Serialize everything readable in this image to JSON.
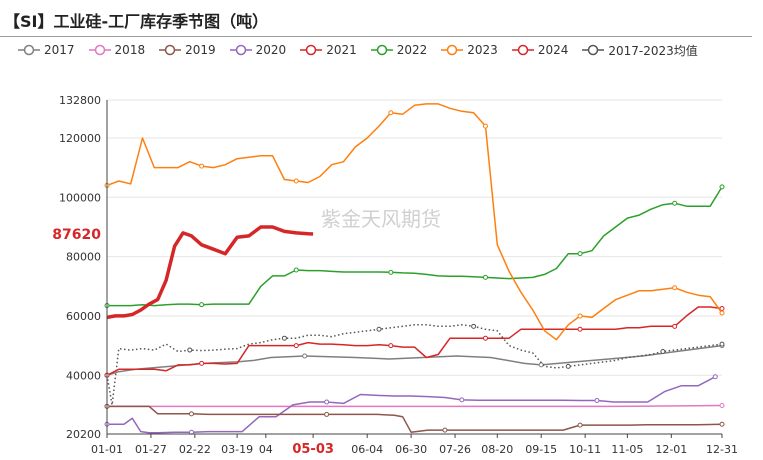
{
  "title": "【SI】工业硅-工厂库存季节图（吨）",
  "watermark": "紫金天风期货",
  "chart_data": {
    "type": "line",
    "title": "【SI】工业硅-工厂库存季节图（吨）",
    "xlabel": "",
    "ylabel": "",
    "ylim": [
      20200,
      132800
    ],
    "y_ticks": [
      "20200",
      "40000",
      "60000",
      "80000",
      "100000",
      "120000",
      "132800"
    ],
    "x_ticks": [
      {
        "label": "01-01",
        "day": 0
      },
      {
        "label": "01-27",
        "day": 26
      },
      {
        "label": "02-22",
        "day": 52
      },
      {
        "label": "03-19",
        "day": 77
      },
      {
        "label": "04",
        "day": 94
      },
      {
        "label": "05-03",
        "day": 122,
        "highlight": true
      },
      {
        "label": "06-04",
        "day": 154
      },
      {
        "label": "06-30",
        "day": 180
      },
      {
        "label": "07-26",
        "day": 206
      },
      {
        "label": "08-20",
        "day": 231
      },
      {
        "label": "09-15",
        "day": 257
      },
      {
        "label": "10-11",
        "day": 283
      },
      {
        "label": "11-05",
        "day": 308
      },
      {
        "label": "12-01",
        "day": 334
      },
      {
        "label": "12-31",
        "day": 364
      }
    ],
    "current_value_label": "87620",
    "current_value": 87620,
    "legend_position": "top",
    "grid": "horizontal",
    "series": [
      {
        "name": "2017",
        "color": "#7f7f7f",
        "x": [
          0,
          7,
          17,
          37,
          57,
          77,
          87,
          97,
          117,
          147,
          167,
          187,
          207,
          227,
          237,
          247,
          257,
          277,
          297,
          317,
          337,
          357,
          364
        ],
        "y": [
          40000,
          41200,
          42000,
          43000,
          44000,
          44500,
          45000,
          46000,
          46500,
          46000,
          45500,
          46000,
          46500,
          46000,
          45000,
          44000,
          43500,
          44500,
          45500,
          46500,
          48000,
          49500,
          50000
        ]
      },
      {
        "name": "2018",
        "color": "#e377c2",
        "x": [
          0,
          60,
          120,
          180,
          240,
          300,
          364
        ],
        "y": [
          29500,
          29500,
          29500,
          29500,
          29500,
          29500,
          29800
        ]
      },
      {
        "name": "2019",
        "color": "#8c564b",
        "x": [
          0,
          5,
          10,
          15,
          20,
          25,
          30,
          40,
          50,
          60,
          70,
          80,
          90,
          100,
          110,
          120,
          130,
          140,
          150,
          160,
          170,
          175,
          180,
          190,
          200,
          210,
          220,
          230,
          240,
          250,
          260,
          270,
          280,
          290,
          300,
          310,
          320,
          330,
          340,
          350,
          364
        ],
        "y": [
          29500,
          29500,
          29500,
          29500,
          29500,
          29500,
          27000,
          27000,
          27000,
          26800,
          26800,
          26800,
          26800,
          26800,
          26800,
          26800,
          26800,
          26800,
          26800,
          26800,
          26500,
          26000,
          20800,
          21500,
          21500,
          21500,
          21500,
          21500,
          21500,
          21500,
          21500,
          21500,
          23200,
          23200,
          23200,
          23200,
          23300,
          23300,
          23300,
          23300,
          23500
        ]
      },
      {
        "name": "2020",
        "color": "#9467bd",
        "x": [
          0,
          5,
          10,
          15,
          20,
          25,
          30,
          40,
          50,
          60,
          70,
          80,
          90,
          100,
          110,
          120,
          130,
          140,
          150,
          160,
          170,
          180,
          190,
          200,
          210,
          220,
          230,
          240,
          250,
          260,
          270,
          280,
          290,
          300,
          310,
          320,
          330,
          340,
          350,
          360
        ],
        "y": [
          23500,
          23500,
          23500,
          25500,
          21000,
          20600,
          20600,
          20800,
          20800,
          21000,
          21000,
          21000,
          26000,
          26000,
          30000,
          31000,
          31000,
          30500,
          33500,
          33200,
          33000,
          33000,
          32800,
          32500,
          31700,
          31600,
          31600,
          31600,
          31600,
          31600,
          31600,
          31500,
          31500,
          31000,
          31000,
          31000,
          34500,
          36500,
          36500,
          39500
        ]
      },
      {
        "name": "2021",
        "color": "#d62728",
        "x": [
          0,
          7,
          14,
          21,
          28,
          35,
          42,
          49,
          56,
          63,
          70,
          77,
          84,
          91,
          98,
          105,
          112,
          119,
          126,
          133,
          140,
          147,
          154,
          161,
          168,
          175,
          182,
          189,
          196,
          203,
          210,
          217,
          224,
          231,
          238,
          245,
          252,
          259,
          266,
          273,
          280,
          287,
          294,
          301,
          308,
          315,
          322,
          329,
          336,
          343,
          350,
          357,
          364
        ],
        "y": [
          40000,
          42000,
          42000,
          42000,
          42000,
          41500,
          43500,
          43500,
          44000,
          44000,
          43800,
          44000,
          50000,
          50000,
          50000,
          50000,
          50000,
          51000,
          50500,
          50500,
          50300,
          50000,
          50000,
          50300,
          50000,
          49500,
          49500,
          46000,
          47000,
          52500,
          52500,
          52500,
          52500,
          52500,
          52500,
          55500,
          55500,
          55500,
          55500,
          55500,
          55500,
          55500,
          55500,
          55500,
          56000,
          56000,
          56500,
          56500,
          56500,
          60000,
          63000,
          63000,
          62500
        ]
      },
      {
        "name": "2022",
        "color": "#2ca02c",
        "x": [
          0,
          7,
          14,
          21,
          28,
          35,
          42,
          49,
          56,
          63,
          70,
          77,
          84,
          91,
          98,
          105,
          112,
          119,
          126,
          133,
          140,
          147,
          154,
          161,
          168,
          175,
          182,
          189,
          196,
          203,
          210,
          217,
          224,
          231,
          238,
          245,
          252,
          259,
          266,
          273,
          280,
          287,
          294,
          301,
          308,
          315,
          322,
          329,
          336,
          343,
          350,
          357,
          364
        ],
        "y": [
          63500,
          63500,
          63500,
          63800,
          63500,
          63800,
          64000,
          64000,
          63800,
          64000,
          64000,
          64000,
          64000,
          70000,
          73500,
          73500,
          75500,
          75300,
          75300,
          75000,
          74800,
          74800,
          74800,
          74800,
          74700,
          74500,
          74400,
          74000,
          73500,
          73400,
          73400,
          73200,
          73000,
          72800,
          72600,
          72800,
          73000,
          74000,
          76000,
          81000,
          81000,
          82000,
          87000,
          90000,
          93000,
          94000,
          96000,
          97500,
          98000,
          97000,
          97000,
          97000,
          103500
        ]
      },
      {
        "name": "2023",
        "color": "#ff7f0e",
        "x": [
          0,
          7,
          14,
          21,
          28,
          35,
          42,
          49,
          56,
          63,
          70,
          77,
          84,
          91,
          98,
          105,
          112,
          119,
          126,
          133,
          140,
          147,
          154,
          161,
          168,
          175,
          182,
          189,
          196,
          203,
          210,
          217,
          224,
          231,
          238,
          245,
          252,
          259,
          266,
          273,
          280,
          287,
          294,
          301,
          308,
          315,
          322,
          329,
          336,
          343,
          350,
          357,
          364
        ],
        "y": [
          104000,
          105500,
          104500,
          120000,
          110000,
          110000,
          110000,
          112000,
          110500,
          110000,
          111000,
          113000,
          113500,
          114000,
          114000,
          106000,
          105500,
          105000,
          107000,
          111000,
          112000,
          117000,
          120000,
          124000,
          128500,
          128000,
          131000,
          131500,
          131500,
          130000,
          129000,
          128500,
          124000,
          84000,
          75000,
          68000,
          62000,
          55000,
          52000,
          57000,
          60000,
          59500,
          62500,
          65500,
          67000,
          68500,
          68500,
          69000,
          69500,
          68000,
          67000,
          66500,
          61000
        ]
      },
      {
        "name": "2024",
        "color": "#d62728",
        "bold": true,
        "x": [
          0,
          5,
          10,
          15,
          20,
          25,
          30,
          35,
          40,
          45,
          50,
          56,
          63,
          70,
          77,
          84,
          91,
          98,
          105,
          112,
          119,
          122
        ],
        "y": [
          59500,
          60000,
          60000,
          60500,
          62000,
          64000,
          65500,
          72000,
          83500,
          88000,
          87000,
          84000,
          82500,
          81000,
          86500,
          87000,
          90000,
          90000,
          88500,
          88000,
          87700,
          87620
        ]
      },
      {
        "name": "2017-2023均值",
        "color": "#555555",
        "dotted": true,
        "x": [
          0,
          3,
          7,
          14,
          21,
          28,
          35,
          42,
          49,
          56,
          63,
          70,
          77,
          84,
          91,
          98,
          105,
          112,
          119,
          126,
          133,
          140,
          147,
          154,
          161,
          168,
          175,
          182,
          189,
          196,
          203,
          210,
          217,
          224,
          231,
          238,
          245,
          252,
          259,
          266,
          273,
          280,
          287,
          294,
          301,
          308,
          315,
          322,
          329,
          336,
          343,
          350,
          357,
          364
        ],
        "y": [
          40000,
          30000,
          49000,
          48500,
          49000,
          48500,
          50500,
          48000,
          48500,
          48300,
          48500,
          48800,
          49000,
          50500,
          51000,
          52000,
          52500,
          52500,
          53500,
          53500,
          53000,
          54000,
          54500,
          55000,
          55500,
          56000,
          56500,
          57000,
          57000,
          56500,
          56500,
          57000,
          56500,
          55500,
          55000,
          50000,
          48500,
          47500,
          43000,
          42500,
          43000,
          43500,
          44000,
          44500,
          45000,
          46000,
          46500,
          47000,
          48000,
          48500,
          49000,
          49500,
          50000,
          50500
        ]
      }
    ]
  }
}
